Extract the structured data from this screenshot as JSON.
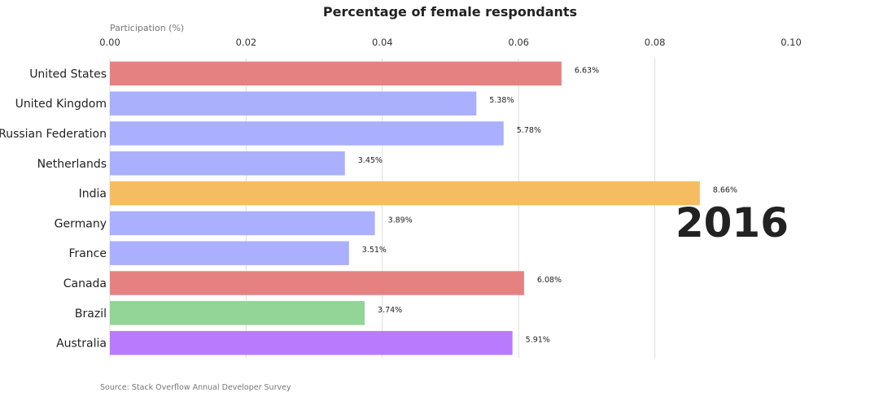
{
  "chart_data": {
    "type": "bar",
    "orientation": "horizontal",
    "title": "Percentage of female respondants",
    "xlabel": "Participation (%)",
    "ylabel": "",
    "xlim": [
      0,
      0.1
    ],
    "xticks": [
      0.0,
      0.02,
      0.04,
      0.06,
      0.08,
      0.1
    ],
    "xtick_labels": [
      "0.00",
      "0.02",
      "0.04",
      "0.06",
      "0.08",
      "0.10"
    ],
    "xaxis_position": "top",
    "grid": true,
    "categories": [
      "United States",
      "United Kingdom",
      "Russian Federation",
      "Netherlands",
      "India",
      "Germany",
      "France",
      "Canada",
      "Brazil",
      "Australia"
    ],
    "values": [
      0.0663,
      0.0538,
      0.0578,
      0.0345,
      0.0866,
      0.0389,
      0.0351,
      0.0608,
      0.0374,
      0.0591
    ],
    "value_labels": [
      "6.63%",
      "5.38%",
      "5.78%",
      "3.45%",
      "8.66%",
      "3.89%",
      "3.51%",
      "6.08%",
      "3.74%",
      "5.91%"
    ],
    "bar_colors": [
      "#e68181",
      "#aaaffe",
      "#aaaffe",
      "#aaaffe",
      "#f5bc60",
      "#aaaffe",
      "#aaaffe",
      "#e68181",
      "#92d596",
      "#ba7afd"
    ],
    "annotation": "2016",
    "source": "Source: Stack Overflow Annual Developer Survey"
  }
}
